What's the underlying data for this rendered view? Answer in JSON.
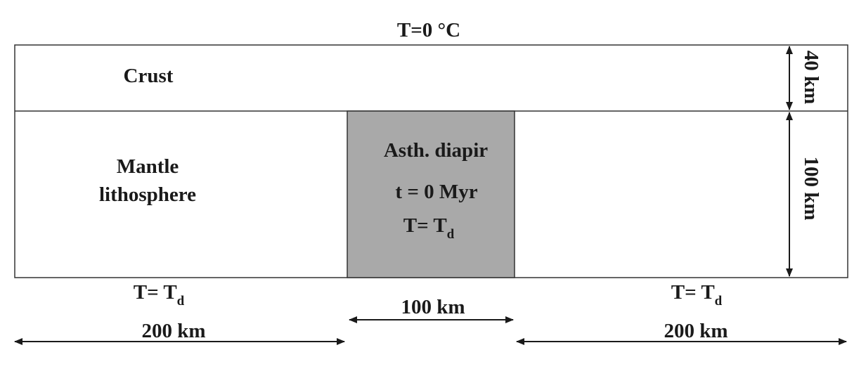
{
  "top_boundary": {
    "label": "T=0 °C"
  },
  "crust": {
    "label": "Crust",
    "thickness": "40 km"
  },
  "mantle": {
    "label_line1": "Mantle",
    "label_line2": "lithosphere",
    "thickness": "100 km"
  },
  "diapir": {
    "title": "Asth. diapir",
    "time": "t = 0 Myr",
    "temp_prefix": "T= T",
    "temp_sub": "d",
    "width": "100 km",
    "fill_color": "#a9a9a9"
  },
  "bottom_left": {
    "temp_prefix": "T= T",
    "temp_sub": "d",
    "width": "200 km"
  },
  "bottom_right": {
    "temp_prefix": "T= T",
    "temp_sub": "d",
    "width": "200 km"
  }
}
